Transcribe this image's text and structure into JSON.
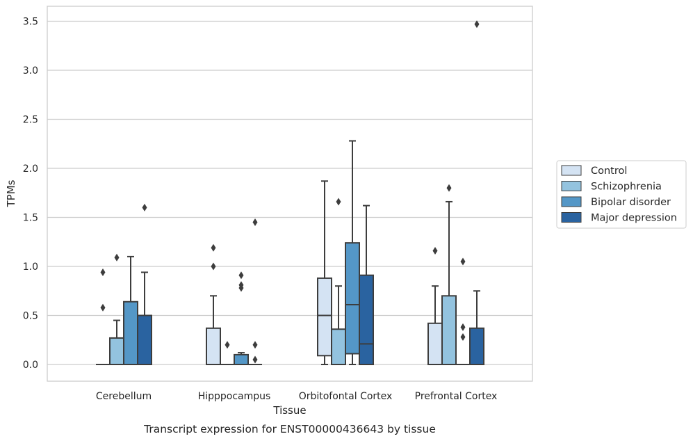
{
  "caption": "Transcript expression for ENST00000436643 by tissue",
  "chart_data": {
    "type": "box",
    "xlabel": "Tissue",
    "ylabel": "TPMs",
    "ylim": [
      -0.17,
      3.65
    ],
    "yticks": [
      "0.0",
      "0.5",
      "1.0",
      "1.5",
      "2.0",
      "2.5",
      "3.0",
      "3.5"
    ],
    "grid": "horizontal",
    "legend_position": "right",
    "categories": [
      "Cerebellum",
      "Hipppocampus",
      "Orbitofontal Cortex",
      "Prefrontal Cortex"
    ],
    "series": [
      {
        "name": "Control",
        "color": "#d4e3f3",
        "boxes": [
          {
            "q1": 0,
            "median": 0,
            "q3": 0,
            "whisker_low": 0,
            "whisker_high": 0,
            "outliers": [
              0.94,
              0.58
            ]
          },
          {
            "q1": 0,
            "median": 0,
            "q3": 0.37,
            "whisker_low": 0,
            "whisker_high": 0.7,
            "outliers": [
              1.19,
              1.0
            ]
          },
          {
            "q1": 0.09,
            "median": 0.5,
            "q3": 0.88,
            "whisker_low": 0,
            "whisker_high": 1.87,
            "outliers": []
          },
          {
            "q1": 0,
            "median": 0,
            "q3": 0.42,
            "whisker_low": 0,
            "whisker_high": 0.8,
            "outliers": [
              1.16
            ]
          }
        ]
      },
      {
        "name": "Schizophrenia",
        "color": "#93c3df",
        "boxes": [
          {
            "q1": 0,
            "median": 0,
            "q3": 0.27,
            "whisker_low": 0,
            "whisker_high": 0.45,
            "outliers": [
              1.09
            ]
          },
          {
            "q1": 0,
            "median": 0,
            "q3": 0,
            "whisker_low": 0,
            "whisker_high": 0,
            "outliers": [
              0.2
            ]
          },
          {
            "q1": 0,
            "median": 0,
            "q3": 0.36,
            "whisker_low": 0,
            "whisker_high": 0.8,
            "outliers": [
              1.66
            ]
          },
          {
            "q1": 0,
            "median": 0,
            "q3": 0.7,
            "whisker_low": 0,
            "whisker_high": 1.66,
            "outliers": [
              1.8
            ]
          }
        ]
      },
      {
        "name": "Bipolar disorder",
        "color": "#5497c7",
        "boxes": [
          {
            "q1": 0,
            "median": 0,
            "q3": 0.64,
            "whisker_low": 0,
            "whisker_high": 1.1,
            "outliers": []
          },
          {
            "q1": 0,
            "median": 0,
            "q3": 0.1,
            "whisker_low": 0,
            "whisker_high": 0.12,
            "outliers": [
              0.91,
              0.81,
              0.78
            ]
          },
          {
            "q1": 0.11,
            "median": 0.61,
            "q3": 1.24,
            "whisker_low": 0,
            "whisker_high": 2.28,
            "outliers": []
          },
          {
            "q1": 0,
            "median": 0,
            "q3": 0,
            "whisker_low": 0,
            "whisker_high": 0,
            "outliers": [
              1.05,
              0.38,
              0.28
            ]
          }
        ]
      },
      {
        "name": "Major depression",
        "color": "#2a63a0",
        "boxes": [
          {
            "q1": 0,
            "median": 0,
            "q3": 0.5,
            "whisker_low": 0,
            "whisker_high": 0.94,
            "outliers": [
              1.6
            ]
          },
          {
            "q1": 0,
            "median": 0,
            "q3": 0,
            "whisker_low": 0,
            "whisker_high": 0,
            "outliers": [
              1.45,
              0.2,
              0.05
            ]
          },
          {
            "q1": 0,
            "median": 0.21,
            "q3": 0.91,
            "whisker_low": 0,
            "whisker_high": 1.62,
            "outliers": []
          },
          {
            "q1": 0,
            "median": 0,
            "q3": 0.37,
            "whisker_low": 0,
            "whisker_high": 0.75,
            "outliers": [
              3.47
            ]
          }
        ]
      }
    ]
  }
}
